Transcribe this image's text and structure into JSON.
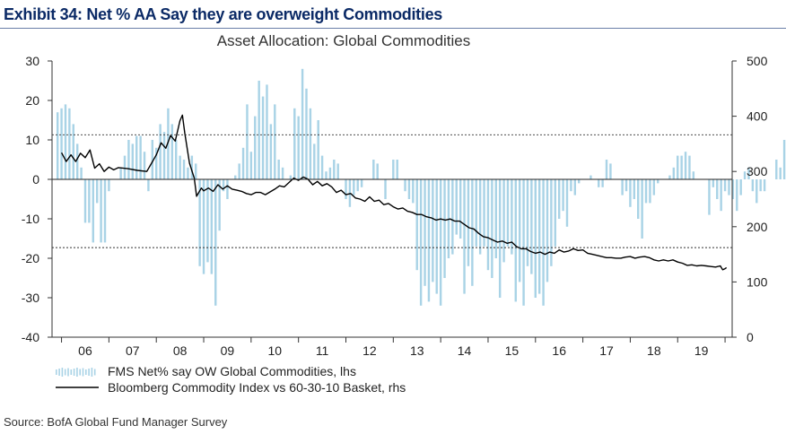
{
  "header": {
    "exhibit_title": "Exhibit 34: Net % AA Say they are overweight Commodities"
  },
  "footer": {
    "source": "Source: BofA Global Fund Manager Survey"
  },
  "colors": {
    "bar": "#a9d3e6",
    "line": "#000000",
    "title": "#0b2a66",
    "axis": "#333333"
  },
  "chart_data": {
    "type": "bar+line",
    "title": "Asset Allocation: Global Commodities",
    "xlabel": "",
    "ylabel_left": "",
    "ylabel_right": "",
    "x_ticks": [
      "06",
      "07",
      "08",
      "09",
      "10",
      "11",
      "12",
      "13",
      "14",
      "15",
      "16",
      "17",
      "18",
      "19"
    ],
    "x_range": [
      2005.8,
      2020.15
    ],
    "y_left": {
      "range": [
        -40,
        30
      ],
      "ticks": [
        -40,
        -30,
        -20,
        -10,
        0,
        10,
        20,
        30
      ]
    },
    "y_right": {
      "range": [
        0,
        500
      ],
      "ticks": [
        0,
        100,
        200,
        300,
        400,
        500
      ]
    },
    "reference_lines_left": [
      11.3,
      -17.3
    ],
    "legend_placement": "bottom-left",
    "series": [
      {
        "name": "FMS Net% say OW Global Commodities, lhs",
        "axis": "left",
        "kind": "bar",
        "x_start": 2005.917,
        "step": 0.08333,
        "values": [
          17,
          18,
          19,
          18,
          14,
          9,
          3,
          -11,
          -11,
          -16,
          -6,
          -16,
          -16,
          -3,
          0,
          0,
          3,
          6,
          10,
          9,
          11,
          11,
          7,
          -3,
          10,
          8,
          14,
          12,
          18,
          14,
          10,
          6,
          5,
          3,
          6,
          4,
          -22,
          -24,
          -21,
          -24,
          -32,
          -13,
          -3,
          -5,
          0,
          1,
          4,
          8,
          19,
          7,
          16,
          25,
          21,
          24,
          14,
          19,
          5,
          3,
          0,
          1,
          18,
          16,
          28,
          23,
          18,
          9,
          15,
          6,
          2,
          3,
          5,
          4,
          0,
          -5,
          -7,
          -4,
          -3,
          -2,
          0,
          0,
          5,
          4,
          0,
          -5,
          0,
          5,
          5,
          0,
          -3,
          -5,
          -6,
          -23,
          -32,
          -27,
          -31,
          -26,
          -29,
          -32,
          -25,
          -20,
          -19,
          -14,
          -15,
          -29,
          -22,
          -27,
          -17,
          -19,
          -17,
          -23,
          -25,
          -20,
          -30,
          -21,
          -17,
          -19,
          -31,
          -26,
          -32,
          -22,
          -24,
          -30,
          -29,
          -32,
          -26,
          -22,
          -17,
          -10,
          -8,
          -12,
          -3,
          -4,
          -1,
          0,
          0,
          1,
          0,
          -2,
          -2,
          5,
          4,
          0,
          0,
          -4,
          -3,
          -7,
          -5,
          -10,
          -15,
          -6,
          -6,
          -4,
          -1,
          0,
          0,
          1,
          3,
          6,
          6,
          7,
          6,
          2,
          0,
          0,
          0,
          -9,
          -2,
          -5,
          -8,
          -3,
          -4,
          -5,
          -8,
          -4,
          2,
          3,
          -3,
          -6,
          -3,
          -3,
          0,
          0,
          5,
          3,
          10,
          4,
          -6
        ]
      },
      {
        "name": "Bloomberg Commodity Index vs 60-30-10 Basket, rhs",
        "axis": "right",
        "kind": "line",
        "points": [
          [
            2006.0,
            334
          ],
          [
            2006.1,
            318
          ],
          [
            2006.2,
            330
          ],
          [
            2006.3,
            318
          ],
          [
            2006.4,
            333
          ],
          [
            2006.5,
            325
          ],
          [
            2006.6,
            339
          ],
          [
            2006.7,
            306
          ],
          [
            2006.8,
            314
          ],
          [
            2006.9,
            300
          ],
          [
            2007.0,
            308
          ],
          [
            2007.1,
            303
          ],
          [
            2007.2,
            307
          ],
          [
            2007.4,
            305
          ],
          [
            2007.6,
            302
          ],
          [
            2007.8,
            300
          ],
          [
            2007.9,
            315
          ],
          [
            2008.0,
            330
          ],
          [
            2008.1,
            352
          ],
          [
            2008.2,
            342
          ],
          [
            2008.3,
            365
          ],
          [
            2008.4,
            355
          ],
          [
            2008.5,
            392
          ],
          [
            2008.55,
            402
          ],
          [
            2008.6,
            370
          ],
          [
            2008.7,
            315
          ],
          [
            2008.8,
            288
          ],
          [
            2008.85,
            255
          ],
          [
            2008.95,
            270
          ],
          [
            2009.0,
            265
          ],
          [
            2009.1,
            270
          ],
          [
            2009.2,
            264
          ],
          [
            2009.3,
            276
          ],
          [
            2009.4,
            268
          ],
          [
            2009.5,
            274
          ],
          [
            2009.6,
            268
          ],
          [
            2009.7,
            266
          ],
          [
            2009.8,
            264
          ],
          [
            2009.9,
            260
          ],
          [
            2010.0,
            258
          ],
          [
            2010.1,
            262
          ],
          [
            2010.2,
            262
          ],
          [
            2010.3,
            258
          ],
          [
            2010.4,
            263
          ],
          [
            2010.5,
            268
          ],
          [
            2010.6,
            274
          ],
          [
            2010.7,
            272
          ],
          [
            2010.8,
            280
          ],
          [
            2010.9,
            288
          ],
          [
            2011.0,
            284
          ],
          [
            2011.1,
            290
          ],
          [
            2011.2,
            286
          ],
          [
            2011.3,
            276
          ],
          [
            2011.4,
            282
          ],
          [
            2011.5,
            274
          ],
          [
            2011.6,
            278
          ],
          [
            2011.7,
            272
          ],
          [
            2011.8,
            262
          ],
          [
            2011.9,
            266
          ],
          [
            2012.0,
            258
          ],
          [
            2012.1,
            260
          ],
          [
            2012.2,
            252
          ],
          [
            2012.3,
            250
          ],
          [
            2012.4,
            246
          ],
          [
            2012.5,
            254
          ],
          [
            2012.6,
            246
          ],
          [
            2012.7,
            248
          ],
          [
            2012.8,
            240
          ],
          [
            2012.9,
            242
          ],
          [
            2013.0,
            236
          ],
          [
            2013.1,
            232
          ],
          [
            2013.2,
            234
          ],
          [
            2013.3,
            228
          ],
          [
            2013.4,
            226
          ],
          [
            2013.5,
            222
          ],
          [
            2013.6,
            222
          ],
          [
            2013.7,
            218
          ],
          [
            2013.8,
            216
          ],
          [
            2013.9,
            212
          ],
          [
            2014.0,
            214
          ],
          [
            2014.1,
            212
          ],
          [
            2014.2,
            214
          ],
          [
            2014.3,
            210
          ],
          [
            2014.4,
            210
          ],
          [
            2014.5,
            204
          ],
          [
            2014.6,
            198
          ],
          [
            2014.7,
            196
          ],
          [
            2014.8,
            188
          ],
          [
            2014.9,
            182
          ],
          [
            2015.0,
            180
          ],
          [
            2015.1,
            176
          ],
          [
            2015.2,
            172
          ],
          [
            2015.3,
            174
          ],
          [
            2015.4,
            170
          ],
          [
            2015.5,
            172
          ],
          [
            2015.6,
            164
          ],
          [
            2015.7,
            160
          ],
          [
            2015.8,
            160
          ],
          [
            2015.9,
            155
          ],
          [
            2016.0,
            152
          ],
          [
            2016.1,
            154
          ],
          [
            2016.2,
            150
          ],
          [
            2016.3,
            154
          ],
          [
            2016.4,
            152
          ],
          [
            2016.5,
            158
          ],
          [
            2016.6,
            154
          ],
          [
            2016.7,
            156
          ],
          [
            2016.8,
            160
          ],
          [
            2016.9,
            157
          ],
          [
            2017.0,
            158
          ],
          [
            2017.1,
            152
          ],
          [
            2017.2,
            150
          ],
          [
            2017.3,
            148
          ],
          [
            2017.4,
            146
          ],
          [
            2017.5,
            144
          ],
          [
            2017.6,
            144
          ],
          [
            2017.7,
            143
          ],
          [
            2017.8,
            143
          ],
          [
            2017.9,
            145
          ],
          [
            2018.0,
            146
          ],
          [
            2018.1,
            143
          ],
          [
            2018.2,
            145
          ],
          [
            2018.3,
            146
          ],
          [
            2018.4,
            144
          ],
          [
            2018.5,
            140
          ],
          [
            2018.6,
            138
          ],
          [
            2018.7,
            140
          ],
          [
            2018.8,
            138
          ],
          [
            2018.9,
            140
          ],
          [
            2019.0,
            136
          ],
          [
            2019.1,
            134
          ],
          [
            2019.2,
            130
          ],
          [
            2019.3,
            131
          ],
          [
            2019.4,
            129
          ],
          [
            2019.5,
            130
          ],
          [
            2019.6,
            129
          ],
          [
            2019.7,
            128
          ],
          [
            2019.8,
            127
          ],
          [
            2019.9,
            129
          ],
          [
            2019.95,
            122
          ],
          [
            2020.0,
            124
          ],
          [
            2020.03,
            126
          ]
        ]
      }
    ]
  }
}
